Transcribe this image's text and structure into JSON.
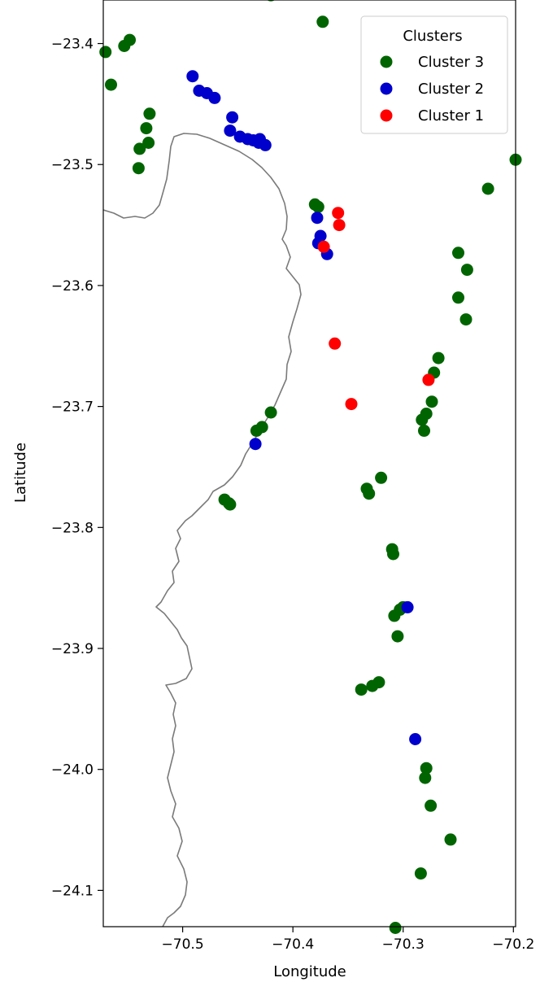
{
  "chart_data": {
    "type": "scatter",
    "xlabel": "Longitude",
    "ylabel": "Latitude",
    "xlim": [
      -70.572,
      -70.198
    ],
    "ylim": [
      -24.13,
      -23.364
    ],
    "xticks": [
      -70.5,
      -70.4,
      -70.3,
      -70.2
    ],
    "xtick_labels": [
      "−70.5",
      "−70.4",
      "−70.3",
      "−70.2"
    ],
    "yticks": [
      -23.4,
      -23.5,
      -23.6,
      -23.7,
      -23.8,
      -23.9,
      -24.0,
      -24.1
    ],
    "ytick_labels": [
      "−23.4",
      "−23.5",
      "−23.6",
      "−23.7",
      "−23.8",
      "−23.9",
      "−24.0",
      "−24.1"
    ],
    "grid": false,
    "legend": {
      "title": "Clusters",
      "position": "top-right"
    },
    "series": [
      {
        "name": "Cluster 3",
        "color": "#006400",
        "points": [
          [
            -70.42,
            -23.36
          ],
          [
            -70.373,
            -23.382
          ],
          [
            -70.57,
            -23.407
          ],
          [
            -70.553,
            -23.402
          ],
          [
            -70.548,
            -23.397
          ],
          [
            -70.565,
            -23.434
          ],
          [
            -70.53,
            -23.458
          ],
          [
            -70.533,
            -23.47
          ],
          [
            -70.531,
            -23.482
          ],
          [
            -70.539,
            -23.487
          ],
          [
            -70.54,
            -23.503
          ],
          [
            -70.198,
            -23.496
          ],
          [
            -70.223,
            -23.52
          ],
          [
            -70.38,
            -23.533
          ],
          [
            -70.377,
            -23.535
          ],
          [
            -70.25,
            -23.573
          ],
          [
            -70.242,
            -23.587
          ],
          [
            -70.25,
            -23.61
          ],
          [
            -70.243,
            -23.628
          ],
          [
            -70.268,
            -23.66
          ],
          [
            -70.272,
            -23.672
          ],
          [
            -70.274,
            -23.696
          ],
          [
            -70.279,
            -23.706
          ],
          [
            -70.283,
            -23.711
          ],
          [
            -70.281,
            -23.72
          ],
          [
            -70.42,
            -23.705
          ],
          [
            -70.428,
            -23.717
          ],
          [
            -70.433,
            -23.72
          ],
          [
            -70.32,
            -23.759
          ],
          [
            -70.333,
            -23.768
          ],
          [
            -70.331,
            -23.772
          ],
          [
            -70.462,
            -23.777
          ],
          [
            -70.458,
            -23.78
          ],
          [
            -70.457,
            -23.781
          ],
          [
            -70.31,
            -23.818
          ],
          [
            -70.309,
            -23.822
          ],
          [
            -70.3,
            -23.866
          ],
          [
            -70.303,
            -23.868
          ],
          [
            -70.308,
            -23.873
          ],
          [
            -70.305,
            -23.89
          ],
          [
            -70.322,
            -23.928
          ],
          [
            -70.328,
            -23.931
          ],
          [
            -70.338,
            -23.934
          ],
          [
            -70.279,
            -23.999
          ],
          [
            -70.28,
            -24.007
          ],
          [
            -70.275,
            -24.03
          ],
          [
            -70.257,
            -24.058
          ],
          [
            -70.284,
            -24.086
          ],
          [
            -70.307,
            -24.131
          ]
        ]
      },
      {
        "name": "Cluster 2",
        "color": "#0000cd",
        "points": [
          [
            -70.491,
            -23.427
          ],
          [
            -70.485,
            -23.439
          ],
          [
            -70.478,
            -23.441
          ],
          [
            -70.471,
            -23.445
          ],
          [
            -70.455,
            -23.461
          ],
          [
            -70.457,
            -23.472
          ],
          [
            -70.448,
            -23.477
          ],
          [
            -70.441,
            -23.479
          ],
          [
            -70.436,
            -23.48
          ],
          [
            -70.43,
            -23.479
          ],
          [
            -70.431,
            -23.482
          ],
          [
            -70.425,
            -23.484
          ],
          [
            -70.378,
            -23.544
          ],
          [
            -70.375,
            -23.559
          ],
          [
            -70.377,
            -23.565
          ],
          [
            -70.369,
            -23.574
          ],
          [
            -70.434,
            -23.731
          ],
          [
            -70.296,
            -23.866
          ],
          [
            -70.289,
            -23.975
          ]
        ]
      },
      {
        "name": "Cluster 1",
        "color": "#ff0000",
        "points": [
          [
            -70.359,
            -23.54
          ],
          [
            -70.358,
            -23.55
          ],
          [
            -70.372,
            -23.568
          ],
          [
            -70.362,
            -23.648
          ],
          [
            -70.347,
            -23.698
          ],
          [
            -70.277,
            -23.678
          ]
        ]
      }
    ]
  }
}
